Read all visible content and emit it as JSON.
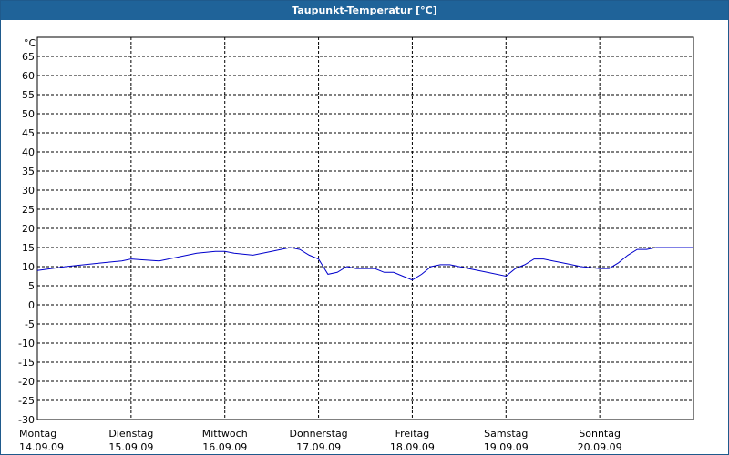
{
  "title": "Taupunkt-Temperatur [°C]",
  "chart_data": {
    "type": "line",
    "title": "Taupunkt-Temperatur [°C]",
    "ylabel": "°C",
    "xlabel": "",
    "ylim": [
      -30,
      70
    ],
    "yticks": [
      65,
      60,
      55,
      50,
      45,
      40,
      35,
      30,
      25,
      20,
      15,
      10,
      5,
      0,
      -5,
      -10,
      -15,
      -20,
      -25,
      -30
    ],
    "xlim": [
      0,
      7
    ],
    "xticks": [
      {
        "x": 0,
        "day": "Montag",
        "date": "14.09.09"
      },
      {
        "x": 1,
        "day": "Dienstag",
        "date": "15.09.09"
      },
      {
        "x": 2,
        "day": "Mittwoch",
        "date": "16.09.09"
      },
      {
        "x": 3,
        "day": "Donnerstag",
        "date": "17.09.09"
      },
      {
        "x": 4,
        "day": "Freitag",
        "date": "18.09.09"
      },
      {
        "x": 5,
        "day": "Samstag",
        "date": "19.09.09"
      },
      {
        "x": 6,
        "day": "Sonntag",
        "date": "20.09.09"
      }
    ],
    "grid": true,
    "line_color": "#0000cc",
    "series": [
      {
        "x": [
          0,
          0.1,
          0.3,
          0.5,
          0.7,
          0.9,
          1.0,
          1.1,
          1.3,
          1.5,
          1.7,
          1.9,
          2.0,
          2.1,
          2.3,
          2.5,
          2.6,
          2.7,
          2.8,
          2.9,
          3.0,
          3.05,
          3.1,
          3.2,
          3.3,
          3.4,
          3.5,
          3.6,
          3.7,
          3.8,
          3.9,
          4.0,
          4.1,
          4.2,
          4.3,
          4.4,
          4.5,
          4.6,
          4.8,
          5.0,
          5.1,
          5.2,
          5.3,
          5.4,
          5.5,
          5.6,
          5.8,
          6.0,
          6.1,
          6.2,
          6.3,
          6.4,
          6.5,
          6.6,
          6.8,
          7.0
        ],
        "y": [
          9,
          9.3,
          10,
          10.5,
          11,
          11.5,
          12,
          11.8,
          11.5,
          12.5,
          13.5,
          14,
          14,
          13.5,
          13,
          14,
          14.5,
          15,
          14.5,
          13,
          12,
          10,
          8,
          8.5,
          10,
          9.5,
          9.5,
          9.5,
          8.5,
          8.5,
          7.5,
          6.5,
          8,
          10,
          10.5,
          10.5,
          10,
          9.5,
          8.5,
          7.5,
          9.5,
          10.5,
          12,
          12,
          11.5,
          11,
          10,
          9.5,
          9.5,
          11,
          13,
          14.5,
          14.5,
          15,
          15,
          15
        ]
      }
    ]
  }
}
